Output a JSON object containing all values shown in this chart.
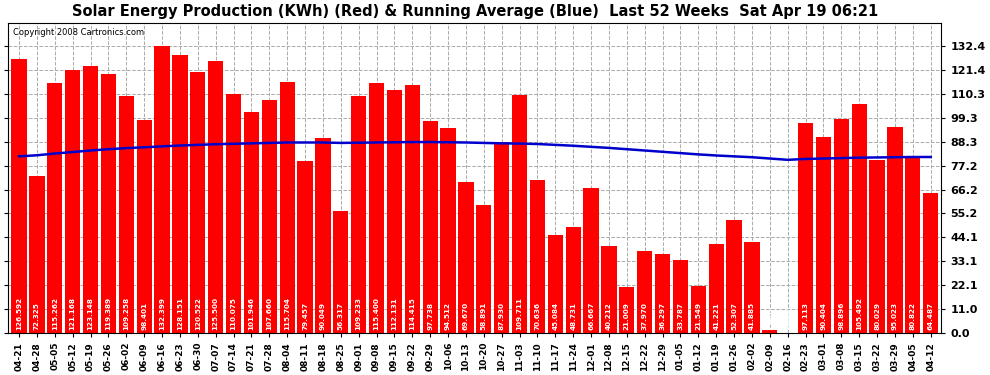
{
  "title": "Solar Energy Production (KWh) (Red) & Running Average (Blue)  Last 52 Weeks  Sat Apr 19 06:21",
  "copyright": "Copyright 2008 Cartronics.com",
  "bar_color": "#FF0000",
  "avg_line_color": "#0000CC",
  "background_color": "#FFFFFF",
  "grid_color": "#AAAAAA",
  "ylim": [
    0.0,
    143.0
  ],
  "yticks": [
    0.0,
    11.0,
    22.1,
    33.1,
    44.1,
    55.2,
    66.2,
    77.2,
    88.3,
    99.3,
    110.3,
    121.4,
    132.4
  ],
  "categories": [
    "04-21",
    "04-28",
    "05-05",
    "05-12",
    "05-19",
    "05-26",
    "06-02",
    "06-09",
    "06-16",
    "06-23",
    "06-30",
    "07-07",
    "07-14",
    "07-21",
    "07-28",
    "08-04",
    "08-11",
    "08-18",
    "08-25",
    "09-01",
    "09-08",
    "09-15",
    "09-22",
    "09-29",
    "10-06",
    "10-13",
    "10-20",
    "10-27",
    "11-03",
    "11-10",
    "11-17",
    "11-24",
    "12-01",
    "12-08",
    "12-15",
    "12-22",
    "12-29",
    "01-05",
    "01-12",
    "01-19",
    "01-26",
    "02-02",
    "02-09",
    "02-16",
    "02-23",
    "03-01",
    "03-08",
    "03-15",
    "03-22",
    "03-29",
    "04-05",
    "04-12"
  ],
  "values": [
    126.592,
    72.325,
    115.262,
    121.168,
    123.148,
    119.389,
    109.258,
    98.401,
    132.399,
    128.151,
    120.522,
    125.5,
    110.075,
    101.946,
    107.66,
    115.704,
    79.457,
    90.049,
    56.317,
    109.233,
    115.4,
    112.131,
    114.415,
    97.738,
    94.512,
    69.67,
    58.891,
    87.93,
    109.711,
    70.636,
    45.084,
    48.731,
    66.667,
    40.212,
    21.009,
    37.97,
    36.297,
    33.787,
    21.549,
    41.221,
    52.307,
    41.885,
    1.413,
    0.0,
    97.113,
    90.404,
    98.896,
    105.492,
    80.029,
    95.023,
    80.822,
    64.487
  ],
  "running_avg": [
    81.5,
    82.0,
    82.8,
    83.5,
    84.2,
    84.8,
    85.3,
    85.7,
    86.1,
    86.5,
    86.8,
    87.1,
    87.3,
    87.5,
    87.7,
    87.9,
    87.9,
    87.9,
    87.7,
    87.8,
    87.9,
    88.0,
    88.1,
    88.1,
    88.0,
    87.9,
    87.7,
    87.5,
    87.4,
    87.2,
    86.8,
    86.4,
    85.9,
    85.4,
    84.8,
    84.2,
    83.6,
    83.0,
    82.4,
    81.9,
    81.5,
    81.1,
    80.5,
    79.9,
    80.3,
    80.5,
    80.7,
    80.9,
    81.0,
    81.1,
    81.2,
    81.2
  ]
}
